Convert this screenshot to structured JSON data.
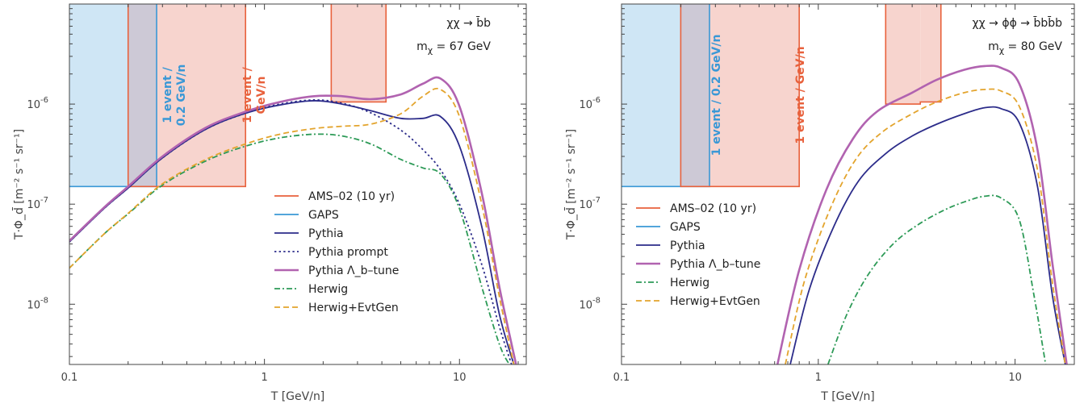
{
  "colors": {
    "ams": "#e8613c",
    "ams_fill": "#f7d4ce",
    "gaps": "#3a98d6",
    "gaps_fill": "#cfe6f5",
    "overlap_fill": "#cdc9d6",
    "pythia": "#2c2c8a",
    "lambda": "#b163b0",
    "herwig": "#2d9a57",
    "evtgen": "#e3a42d"
  },
  "chart_data": [
    {
      "type": "line",
      "panel": "left",
      "xlabel": "T [GeV/n]",
      "ylabel": "T·Φ_d̄ [m⁻² s⁻¹ sr⁻¹]",
      "xlog": true,
      "ylog": true,
      "xlim": [
        0.1,
        22
      ],
      "ylim": [
        2.5e-09,
        1e-05
      ],
      "xticks": [
        {
          "v": 0.1,
          "label": "0.1"
        },
        {
          "v": 1,
          "label": "1"
        },
        {
          "v": 10,
          "label": "10"
        }
      ],
      "yticks": [
        {
          "v": 1e-08,
          "label": "10",
          "exp": "-8"
        },
        {
          "v": 1e-07,
          "label": "10",
          "exp": "-7"
        },
        {
          "v": 1e-06,
          "label": "10",
          "exp": "-6"
        }
      ],
      "annotation": {
        "process_label": "χχ → b̄b",
        "mass_label": "m",
        "mass_sub": "χ",
        "mass_value": " = 67 GeV"
      },
      "gaps_region": {
        "x": [
          0.1,
          0.28
        ],
        "y": 1.5e-07
      },
      "ams_regions": [
        {
          "x": [
            0.2,
            0.8
          ],
          "y": 1.5e-07
        },
        {
          "x": [
            2.2,
            4.2
          ],
          "y": 1.05e-06
        }
      ],
      "gaps_label": [
        "1 event /",
        "0.2 GeV/n"
      ],
      "ams_label": [
        "1 event /",
        "GeV/n"
      ],
      "legend": [
        "AMS–02 (10 yr)",
        "GAPS",
        "Pythia",
        "Pythia prompt",
        "Pythia Λ_b–tune",
        "Herwig",
        "Herwig+EvtGen"
      ],
      "series": [
        {
          "name": "Pythia",
          "style": "solid",
          "color_key": "pythia",
          "x": [
            0.1,
            0.15,
            0.2,
            0.3,
            0.5,
            0.8,
            1.2,
            1.8,
            2.5,
            3.5,
            5,
            6.5,
            8,
            10,
            13,
            16,
            19
          ],
          "y": [
            4.2e-08,
            9e-08,
            1.45e-07,
            2.9e-07,
            5.6e-07,
            8.1e-07,
            9.8e-07,
            1.08e-06,
            1e-06,
            8.6e-07,
            7.2e-07,
            7.2e-07,
            7.5e-07,
            3.8e-07,
            6e-08,
            8e-09,
            2.5e-09
          ]
        },
        {
          "name": "Pythia prompt",
          "style": "dot",
          "color_key": "pythia",
          "x": [
            0.1,
            0.15,
            0.2,
            0.3,
            0.5,
            0.8,
            1.2,
            1.8,
            2.5,
            3.5,
            5,
            6.5,
            8,
            10,
            13,
            16,
            18.5
          ],
          "y": [
            4.2e-08,
            9e-08,
            1.45e-07,
            2.9e-07,
            5.6e-07,
            8.1e-07,
            1e-06,
            1.1e-06,
            1.02e-06,
            8.2e-07,
            5.5e-07,
            3.5e-07,
            2.2e-07,
            1e-07,
            2.5e-08,
            6e-09,
            2.5e-09
          ]
        },
        {
          "name": "Pythia Λ_b–tune",
          "style": "solid",
          "color_key": "lambda",
          "x": [
            0.1,
            0.15,
            0.2,
            0.3,
            0.5,
            0.8,
            1.2,
            1.8,
            2.5,
            3.5,
            5,
            6.5,
            8,
            10,
            13,
            16,
            19.5
          ],
          "y": [
            4.3e-08,
            9.2e-08,
            1.5e-07,
            3e-07,
            5.8e-07,
            8.4e-07,
            1.05e-06,
            1.2e-06,
            1.2e-06,
            1.12e-06,
            1.25e-06,
            1.6e-06,
            1.8e-06,
            9.5e-07,
            1.3e-07,
            1.5e-08,
            2.5e-09
          ]
        },
        {
          "name": "Herwig",
          "style": "dashdot",
          "color_key": "herwig",
          "x": [
            0.1,
            0.15,
            0.2,
            0.3,
            0.5,
            0.8,
            1.2,
            1.8,
            2.5,
            3.5,
            5,
            6.5,
            8,
            10,
            13,
            16,
            18
          ],
          "y": [
            2.3e-08,
            5e-08,
            8e-08,
            1.55e-07,
            2.7e-07,
            3.8e-07,
            4.6e-07,
            5e-07,
            4.8e-07,
            4e-07,
            2.8e-07,
            2.3e-07,
            2e-07,
            9e-08,
            1.5e-08,
            4e-09,
            2.5e-09
          ]
        },
        {
          "name": "Herwig+EvtGen",
          "style": "dash",
          "color_key": "evtgen",
          "x": [
            0.1,
            0.15,
            0.2,
            0.3,
            0.5,
            0.8,
            1.2,
            1.8,
            2.5,
            3.5,
            5,
            6.5,
            8,
            10,
            13,
            16,
            19
          ],
          "y": [
            2.3e-08,
            5e-08,
            8.1e-08,
            1.6e-07,
            2.8e-07,
            4e-07,
            5e-07,
            5.7e-07,
            6e-07,
            6.3e-07,
            8e-07,
            1.2e-06,
            1.4e-06,
            7.5e-07,
            1e-07,
            1.2e-08,
            2.5e-09
          ]
        }
      ]
    },
    {
      "type": "line",
      "panel": "right",
      "xlabel": "T [GeV/n]",
      "ylabel": "T·Φ_d̄ [m⁻² s⁻¹ sr⁻¹]",
      "xlog": true,
      "ylog": true,
      "xlim": [
        0.1,
        20
      ],
      "ylim": [
        2.5e-09,
        1e-05
      ],
      "xticks": [
        {
          "v": 0.1,
          "label": "0.1"
        },
        {
          "v": 1,
          "label": "1"
        },
        {
          "v": 10,
          "label": "10"
        }
      ],
      "yticks": [
        {
          "v": 1e-08,
          "label": "10",
          "exp": "-8"
        },
        {
          "v": 1e-07,
          "label": "10",
          "exp": "-7"
        },
        {
          "v": 1e-06,
          "label": "10",
          "exp": "-6"
        }
      ],
      "annotation": {
        "process_label": "χχ → ϕϕ → b̄bb̄b",
        "mass_label": "m",
        "mass_sub": "χ",
        "mass_value": " = 80 GeV"
      },
      "gaps_region": {
        "x": [
          0.1,
          0.28
        ],
        "y": 1.5e-07
      },
      "ams_regions": [
        {
          "x": [
            0.2,
            0.8
          ],
          "y": 1.5e-07
        },
        {
          "x": [
            2.2,
            3.3
          ],
          "y": 1e-06
        },
        {
          "x": [
            3.3,
            4.2
          ],
          "y": 1.05e-06
        }
      ],
      "gaps_label": [
        "1 event / 0.2 GeV/n"
      ],
      "ams_label": [
        "1 event / GeV/n"
      ],
      "legend": [
        "AMS–02 (10 yr)",
        "GAPS",
        "Pythia",
        "Pythia Λ_b–tune",
        "Herwig",
        "Herwig+EvtGen"
      ],
      "series": [
        {
          "name": "Pythia",
          "style": "solid",
          "color_key": "pythia",
          "x": [
            0.72,
            0.9,
            1.2,
            1.6,
            2.2,
            3,
            4,
            5.5,
            7,
            8.5,
            10.5,
            13,
            15.5,
            18
          ],
          "y": [
            2.5e-09,
            1.4e-08,
            6e-08,
            1.7e-07,
            3.2e-07,
            4.8e-07,
            6.3e-07,
            8e-07,
            9.2e-07,
            9e-07,
            6.5e-07,
            1.5e-07,
            1.2e-08,
            2.5e-09
          ]
        },
        {
          "name": "Pythia Λ_b–tune",
          "style": "solid",
          "color_key": "lambda",
          "x": [
            0.62,
            0.8,
            1.1,
            1.5,
            2.0,
            3,
            4,
            5.5,
            7,
            8.5,
            10.5,
            13,
            15.5,
            18.3
          ],
          "y": [
            2.5e-09,
            2.2e-08,
            1.4e-07,
            4.5e-07,
            8.5e-07,
            1.3e-06,
            1.75e-06,
            2.2e-06,
            2.4e-06,
            2.3e-06,
            1.6e-06,
            3.5e-07,
            2.5e-08,
            2.5e-09
          ]
        },
        {
          "name": "Herwig",
          "style": "dashdot",
          "color_key": "herwig",
          "x": [
            1.12,
            1.4,
            1.8,
            2.4,
            3.2,
            4.3,
            5.5,
            7,
            8.5,
            10.5,
            12.5,
            14.3
          ],
          "y": [
            2.5e-09,
            8e-09,
            2e-08,
            4e-08,
            6.2e-08,
            8.6e-08,
            1.05e-07,
            1.2e-07,
            1.15e-07,
            7e-08,
            1.2e-08,
            2.5e-09
          ]
        },
        {
          "name": "Herwig+EvtGen",
          "style": "dash",
          "color_key": "evtgen",
          "x": [
            0.68,
            0.85,
            1.15,
            1.55,
            2.1,
            3,
            4,
            5.5,
            7,
            8.5,
            10.5,
            13,
            15.5,
            18
          ],
          "y": [
            2.5e-09,
            1.7e-08,
            9e-08,
            2.8e-07,
            5.2e-07,
            8e-07,
            1.05e-06,
            1.3e-06,
            1.4e-06,
            1.35e-06,
            9.5e-07,
            2.2e-07,
            1.6e-08,
            2.5e-09
          ]
        }
      ]
    }
  ]
}
